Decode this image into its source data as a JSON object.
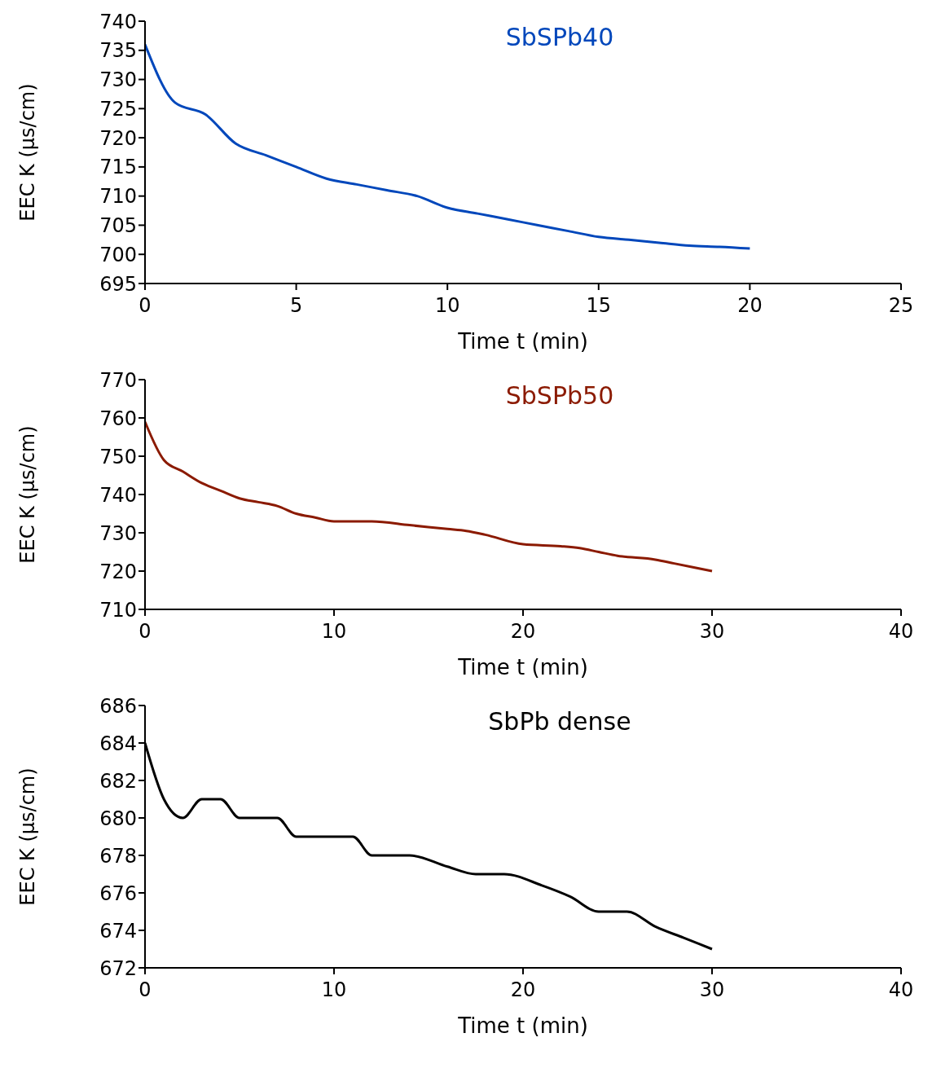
{
  "chart_data": [
    {
      "type": "line",
      "title": "SbSPb40",
      "xlabel": "Time t (min)",
      "ylabel": "EEC K (µs/cm)",
      "x": [
        0,
        1,
        2,
        3,
        4,
        5,
        6,
        7,
        8,
        9,
        10,
        11,
        12,
        13,
        14,
        15,
        16,
        17,
        18,
        19,
        20
      ],
      "series": [
        {
          "color": "#0047bb",
          "values": [
            736,
            726,
            724,
            719,
            717,
            715,
            713,
            712,
            711,
            710,
            708,
            707,
            706,
            705,
            704,
            703,
            702.5,
            702,
            701.5,
            701.3,
            701
          ]
        }
      ],
      "xlim": [
        0,
        25
      ],
      "xticks": [
        0,
        5,
        10,
        15,
        20,
        25
      ],
      "ylim": [
        695,
        740
      ],
      "yticks": [
        695,
        700,
        705,
        710,
        715,
        720,
        725,
        730,
        735,
        740
      ]
    },
    {
      "type": "line",
      "title": "SbSPb50",
      "xlabel": "Time t (min)",
      "ylabel": "EEC K (µs/cm)",
      "x": [
        0,
        1,
        2,
        3,
        4,
        5,
        6,
        7,
        8,
        9,
        10,
        12,
        14,
        16,
        17,
        18,
        20,
        22,
        23,
        24,
        25,
        27,
        28,
        30
      ],
      "series": [
        {
          "color": "#8b1a00",
          "values": [
            759,
            749,
            746,
            743,
            741,
            739,
            738,
            737,
            735,
            734,
            733,
            733,
            732,
            731,
            730.5,
            729.5,
            727,
            726.5,
            726,
            725,
            724,
            723,
            722,
            720
          ]
        }
      ],
      "xlim": [
        0,
        40
      ],
      "xticks": [
        0,
        10,
        20,
        30,
        40
      ],
      "ylim": [
        710,
        770
      ],
      "yticks": [
        710,
        720,
        730,
        740,
        750,
        760,
        770
      ]
    },
    {
      "type": "line",
      "title": "SbPb dense",
      "xlabel": "Time t (min)",
      "ylabel": "EEC K (µs/cm)",
      "x": [
        0,
        1,
        2,
        3,
        4,
        5,
        6,
        7,
        8,
        9,
        10,
        11,
        12,
        14,
        16,
        17.5,
        19,
        21,
        22.5,
        24,
        25.5,
        27,
        28.5,
        30
      ],
      "series": [
        {
          "color": "#000000",
          "values": [
            684,
            681,
            680,
            681,
            681,
            680,
            680,
            680,
            679,
            679,
            679,
            679,
            678,
            678,
            677.4,
            677,
            677,
            676.4,
            675.8,
            675,
            675,
            674.2,
            673.6,
            673
          ]
        }
      ],
      "xlim": [
        0,
        40
      ],
      "xticks": [
        0,
        10,
        20,
        30,
        40
      ],
      "ylim": [
        672,
        686
      ],
      "yticks": [
        672,
        674,
        676,
        678,
        680,
        682,
        684,
        686
      ]
    }
  ]
}
